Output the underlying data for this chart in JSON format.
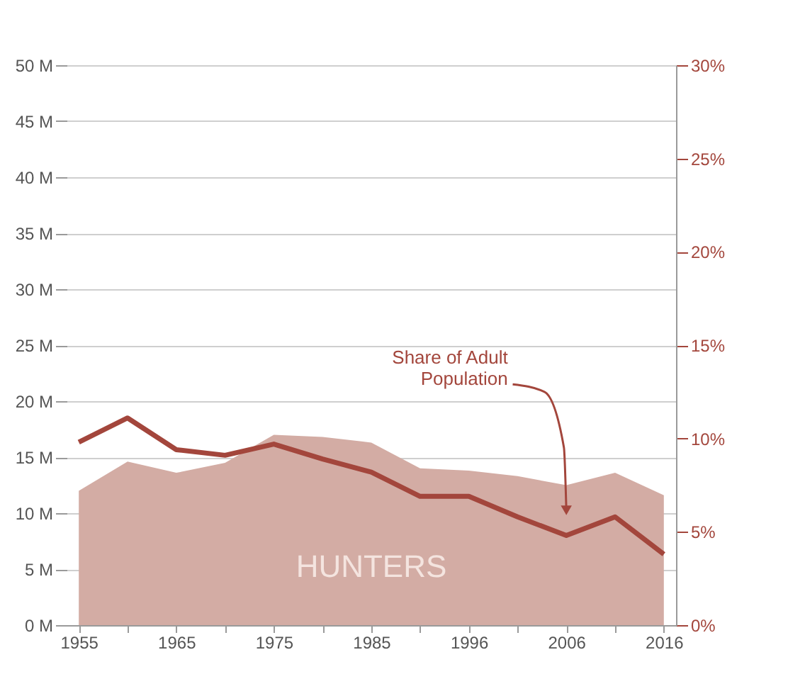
{
  "chart_data": {
    "type": "area",
    "categories": [
      "1955",
      null,
      "1965",
      null,
      "1975",
      null,
      "1985",
      null,
      "1996",
      null,
      "2006",
      null,
      "2016"
    ],
    "series": [
      {
        "name": "HUNTERS",
        "color": "#d3aca4",
        "values": [
          12.0,
          14.6,
          13.6,
          14.5,
          17.0,
          16.8,
          16.3,
          14.0,
          13.8,
          13.3,
          12.5,
          13.6,
          11.6
        ]
      },
      {
        "name": "Share of Adult Population",
        "type": "line",
        "axis": "y2",
        "color": "#a3463c",
        "values": [
          9.8,
          11.1,
          9.4,
          9.1,
          9.7,
          8.9,
          8.2,
          6.9,
          6.9,
          5.8,
          4.8,
          5.8,
          3.8
        ]
      }
    ],
    "ylim": [
      0,
      50
    ],
    "yticks": [
      {
        "value": 0,
        "label": "0 M"
      },
      {
        "value": 5,
        "label": "5 M"
      },
      {
        "value": 10,
        "label": "10 M"
      },
      {
        "value": 15,
        "label": "15 M"
      },
      {
        "value": 20,
        "label": "20 M"
      },
      {
        "value": 25,
        "label": "25 M"
      },
      {
        "value": 30,
        "label": "30 M"
      },
      {
        "value": 35,
        "label": "35 M"
      },
      {
        "value": 40,
        "label": "40 M"
      },
      {
        "value": 45,
        "label": "45 M"
      },
      {
        "value": 50,
        "label": "50 M"
      }
    ],
    "y2lim": [
      0,
      30
    ],
    "y2ticks": [
      {
        "value": 0,
        "label": "0%"
      },
      {
        "value": 5,
        "label": "5%"
      },
      {
        "value": 10,
        "label": "10%"
      },
      {
        "value": 15,
        "label": "15%"
      },
      {
        "value": 20,
        "label": "20%"
      },
      {
        "value": 25,
        "label": "25%"
      },
      {
        "value": 30,
        "label": "30%"
      }
    ],
    "grid": "y"
  }
}
